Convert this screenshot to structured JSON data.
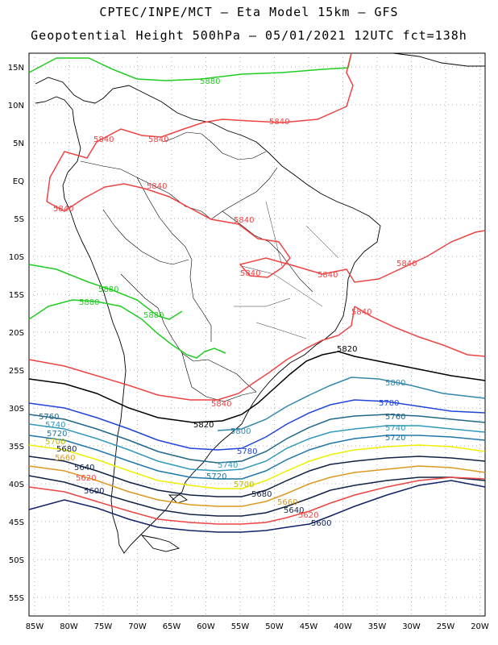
{
  "header": {
    "title_line1": "CPTEC/INPE/MCT –  Eta Model 15km – GFS",
    "title_line2": "Geopotential Height 500hPa – 05/01/2021 12UTC fct=138h"
  },
  "map": {
    "lat_labels": [
      "15N",
      "10N",
      "5N",
      "EQ",
      "5S",
      "10S",
      "15S",
      "20S",
      "25S",
      "30S",
      "35S",
      "40S",
      "45S",
      "50S",
      "55S"
    ],
    "lon_labels": [
      "85W",
      "80W",
      "75W",
      "70W",
      "65W",
      "60W",
      "55W",
      "50W",
      "45W",
      "40W",
      "35W",
      "30W",
      "25W",
      "20W"
    ]
  },
  "contours": {
    "c5880": {
      "label": "5880",
      "color": "#22cc22"
    },
    "c5840": {
      "label": "5840",
      "color": "#ee4444"
    },
    "c5820": {
      "label": "5820",
      "color": "#000000"
    },
    "c5800": {
      "label": "5800",
      "color": "#3388aa"
    },
    "c5780": {
      "label": "5780",
      "color": "#2244dd"
    },
    "c5760": {
      "label": "5760",
      "color": "#226688"
    },
    "c5740": {
      "label": "5740",
      "color": "#3399bb"
    },
    "c5720": {
      "label": "5720",
      "color": "#2277aa"
    },
    "c5700": {
      "label": "5700",
      "color": "#eeee00"
    },
    "c5680": {
      "label": "5680",
      "color": "#112244"
    },
    "c5660": {
      "label": "5660",
      "color": "#dd9922"
    },
    "c5640": {
      "label": "5640",
      "color": "#112244"
    },
    "c5620": {
      "label": "5620",
      "color": "#ee4444"
    },
    "c5600": {
      "label": "5600",
      "color": "#112266"
    }
  }
}
